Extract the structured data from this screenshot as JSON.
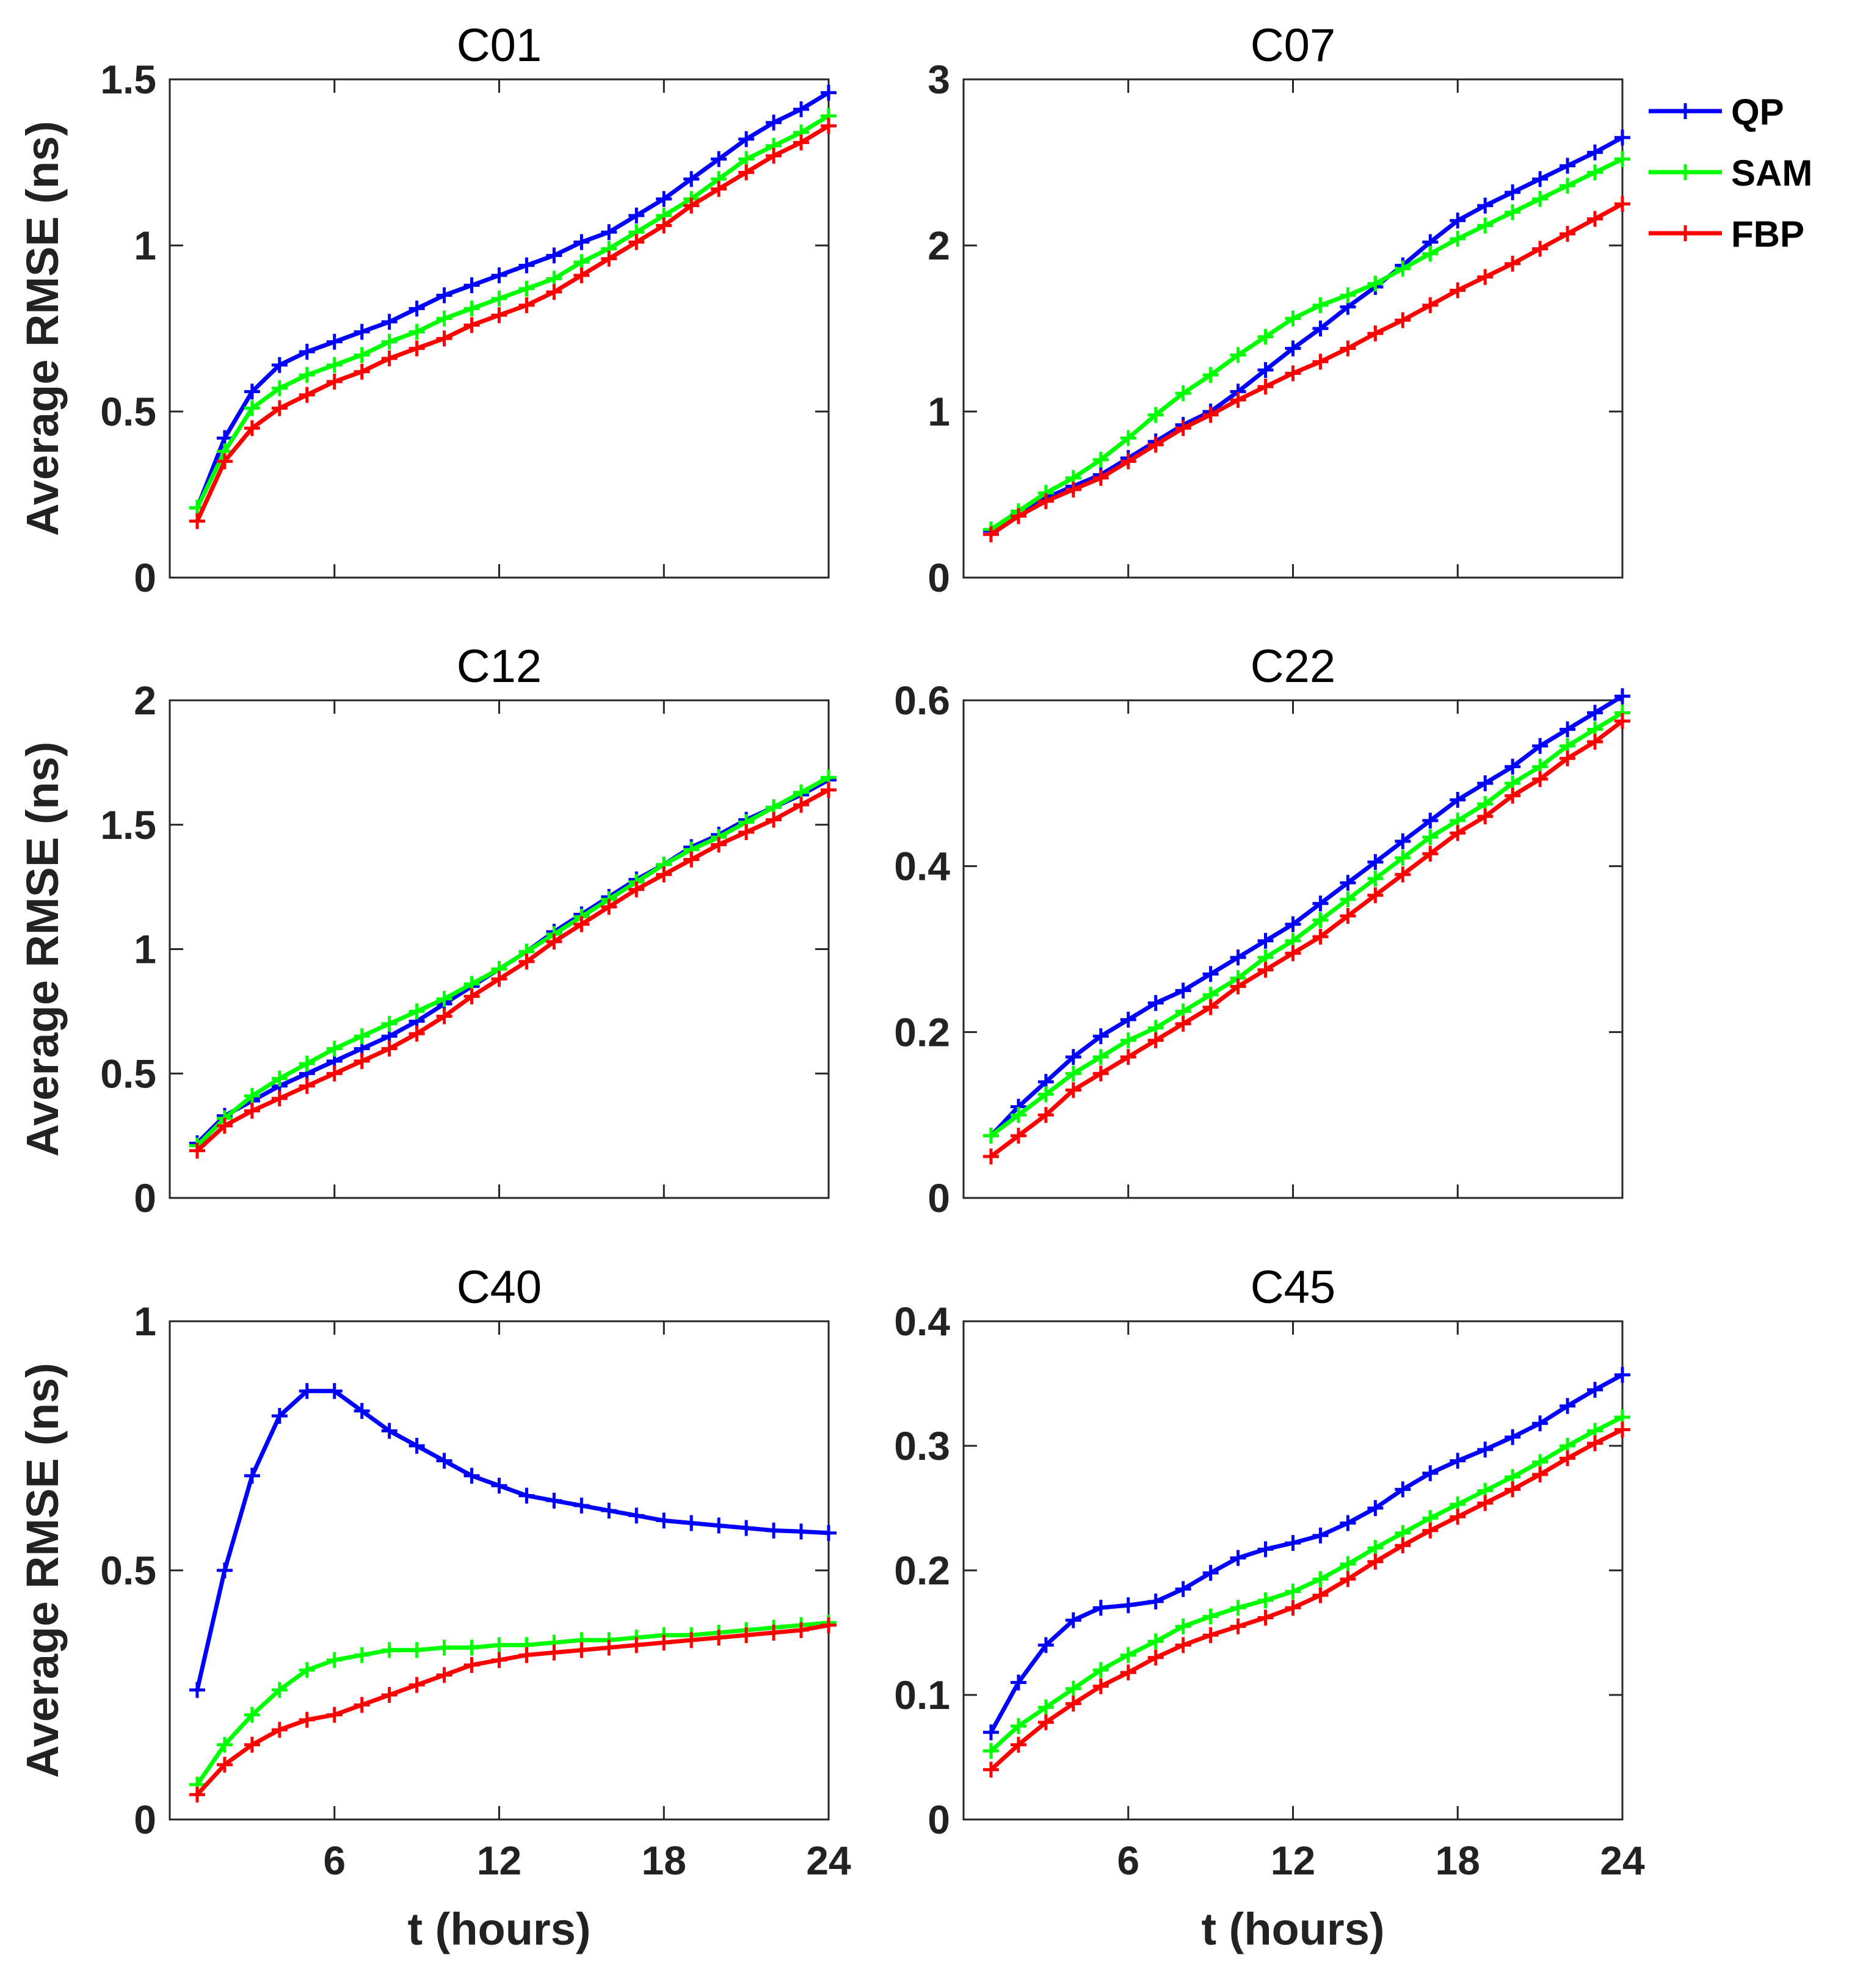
{
  "colors": {
    "QP": "#0000ff",
    "SAM": "#00ff00",
    "FBP": "#ff0000"
  },
  "legend": {
    "placement": "top-right",
    "entries": [
      "QP",
      "SAM",
      "FBP"
    ]
  },
  "chart_data": [
    {
      "type": "line",
      "title": "C01",
      "xlabel": "",
      "ylabel": "Average RMSE (ns)",
      "xlim": [
        0,
        24
      ],
      "ylim": [
        0,
        1.5
      ],
      "xticks": [
        6,
        12,
        18,
        24
      ],
      "yticks": [
        0,
        0.5,
        1,
        1.5
      ],
      "ytick_labels": [
        "0",
        "0.5",
        "1",
        "1.5"
      ],
      "xtick_labels": [
        "",
        "",
        "",
        ""
      ],
      "x": [
        1,
        2,
        3,
        4,
        5,
        6,
        7,
        8,
        9,
        10,
        11,
        12,
        13,
        14,
        15,
        16,
        17,
        18,
        19,
        20,
        21,
        22,
        23,
        24
      ],
      "series": [
        {
          "name": "QP",
          "values": [
            0.21,
            0.42,
            0.56,
            0.64,
            0.68,
            0.71,
            0.74,
            0.77,
            0.81,
            0.85,
            0.88,
            0.91,
            0.94,
            0.97,
            1.01,
            1.04,
            1.09,
            1.14,
            1.2,
            1.26,
            1.32,
            1.37,
            1.41,
            1.46
          ]
        },
        {
          "name": "SAM",
          "values": [
            0.21,
            0.38,
            0.51,
            0.57,
            0.61,
            0.64,
            0.67,
            0.71,
            0.74,
            0.78,
            0.81,
            0.84,
            0.87,
            0.9,
            0.95,
            0.99,
            1.04,
            1.09,
            1.14,
            1.2,
            1.26,
            1.3,
            1.34,
            1.39
          ]
        },
        {
          "name": "FBP",
          "values": [
            0.17,
            0.35,
            0.45,
            0.51,
            0.55,
            0.59,
            0.62,
            0.66,
            0.69,
            0.72,
            0.76,
            0.79,
            0.82,
            0.86,
            0.91,
            0.96,
            1.01,
            1.06,
            1.12,
            1.17,
            1.22,
            1.27,
            1.31,
            1.36
          ]
        }
      ]
    },
    {
      "type": "line",
      "title": "C07",
      "xlabel": "",
      "ylabel": "",
      "xlim": [
        0,
        24
      ],
      "ylim": [
        0,
        3
      ],
      "xticks": [
        6,
        12,
        18,
        24
      ],
      "yticks": [
        0,
        1,
        2,
        3
      ],
      "ytick_labels": [
        "0",
        "1",
        "2",
        "3"
      ],
      "xtick_labels": [
        "",
        "",
        "",
        ""
      ],
      "x": [
        1,
        2,
        3,
        4,
        5,
        6,
        7,
        8,
        9,
        10,
        11,
        12,
        13,
        14,
        15,
        16,
        17,
        18,
        19,
        20,
        21,
        22,
        23,
        24
      ],
      "series": [
        {
          "name": "QP",
          "values": [
            0.28,
            0.38,
            0.48,
            0.55,
            0.62,
            0.72,
            0.82,
            0.92,
            1.0,
            1.12,
            1.25,
            1.38,
            1.5,
            1.63,
            1.75,
            1.88,
            2.02,
            2.15,
            2.24,
            2.32,
            2.4,
            2.48,
            2.56,
            2.65
          ]
        },
        {
          "name": "SAM",
          "values": [
            0.29,
            0.4,
            0.51,
            0.6,
            0.71,
            0.84,
            0.98,
            1.11,
            1.22,
            1.34,
            1.45,
            1.56,
            1.64,
            1.7,
            1.77,
            1.86,
            1.95,
            2.04,
            2.12,
            2.2,
            2.28,
            2.36,
            2.44,
            2.52
          ]
        },
        {
          "name": "FBP",
          "values": [
            0.26,
            0.37,
            0.46,
            0.53,
            0.6,
            0.7,
            0.8,
            0.9,
            0.98,
            1.07,
            1.15,
            1.23,
            1.3,
            1.38,
            1.47,
            1.55,
            1.64,
            1.73,
            1.81,
            1.89,
            1.98,
            2.07,
            2.16,
            2.25
          ]
        }
      ]
    },
    {
      "type": "line",
      "title": "C12",
      "xlabel": "",
      "ylabel": "Average RMSE (ns)",
      "xlim": [
        0,
        24
      ],
      "ylim": [
        0,
        2
      ],
      "xticks": [
        6,
        12,
        18,
        24
      ],
      "yticks": [
        0,
        0.5,
        1,
        1.5,
        2
      ],
      "ytick_labels": [
        "0",
        "0.5",
        "1",
        "1.5",
        "2"
      ],
      "xtick_labels": [
        "",
        "",
        "",
        ""
      ],
      "x": [
        1,
        2,
        3,
        4,
        5,
        6,
        7,
        8,
        9,
        10,
        11,
        12,
        13,
        14,
        15,
        16,
        17,
        18,
        19,
        20,
        21,
        22,
        23,
        24
      ],
      "series": [
        {
          "name": "QP",
          "values": [
            0.22,
            0.33,
            0.39,
            0.45,
            0.5,
            0.55,
            0.6,
            0.65,
            0.71,
            0.78,
            0.85,
            0.92,
            0.99,
            1.07,
            1.14,
            1.21,
            1.28,
            1.34,
            1.41,
            1.46,
            1.52,
            1.57,
            1.62,
            1.68
          ]
        },
        {
          "name": "SAM",
          "values": [
            0.21,
            0.32,
            0.41,
            0.48,
            0.54,
            0.6,
            0.65,
            0.7,
            0.75,
            0.8,
            0.86,
            0.92,
            0.99,
            1.06,
            1.13,
            1.2,
            1.27,
            1.34,
            1.4,
            1.45,
            1.51,
            1.57,
            1.63,
            1.69
          ]
        },
        {
          "name": "FBP",
          "values": [
            0.19,
            0.29,
            0.35,
            0.4,
            0.45,
            0.5,
            0.55,
            0.6,
            0.66,
            0.73,
            0.81,
            0.88,
            0.95,
            1.03,
            1.1,
            1.17,
            1.24,
            1.3,
            1.36,
            1.42,
            1.47,
            1.52,
            1.58,
            1.64
          ]
        }
      ]
    },
    {
      "type": "line",
      "title": "C22",
      "xlabel": "",
      "ylabel": "",
      "xlim": [
        0,
        24
      ],
      "ylim": [
        0,
        0.6
      ],
      "xticks": [
        6,
        12,
        18,
        24
      ],
      "yticks": [
        0,
        0.2,
        0.4,
        0.6
      ],
      "ytick_labels": [
        "0",
        "0.2",
        "0.4",
        "0.6"
      ],
      "xtick_labels": [
        "",
        "",
        "",
        ""
      ],
      "x": [
        1,
        2,
        3,
        4,
        5,
        6,
        7,
        8,
        9,
        10,
        11,
        12,
        13,
        14,
        15,
        16,
        17,
        18,
        19,
        20,
        21,
        22,
        23,
        24
      ],
      "series": [
        {
          "name": "QP",
          "values": [
            0.075,
            0.11,
            0.14,
            0.17,
            0.195,
            0.215,
            0.235,
            0.25,
            0.27,
            0.29,
            0.31,
            0.33,
            0.355,
            0.38,
            0.405,
            0.43,
            0.455,
            0.48,
            0.5,
            0.52,
            0.545,
            0.565,
            0.585,
            0.605
          ]
        },
        {
          "name": "SAM",
          "values": [
            0.075,
            0.1,
            0.125,
            0.15,
            0.17,
            0.19,
            0.205,
            0.225,
            0.245,
            0.265,
            0.29,
            0.31,
            0.335,
            0.36,
            0.385,
            0.41,
            0.435,
            0.455,
            0.475,
            0.5,
            0.52,
            0.545,
            0.565,
            0.585
          ]
        },
        {
          "name": "FBP",
          "values": [
            0.05,
            0.075,
            0.1,
            0.13,
            0.15,
            0.17,
            0.19,
            0.21,
            0.23,
            0.255,
            0.275,
            0.295,
            0.315,
            0.34,
            0.365,
            0.39,
            0.415,
            0.44,
            0.46,
            0.485,
            0.505,
            0.53,
            0.55,
            0.575
          ]
        }
      ]
    },
    {
      "type": "line",
      "title": "C40",
      "xlabel": "t (hours)",
      "ylabel": "Average RMSE (ns)",
      "xlim": [
        0,
        24
      ],
      "ylim": [
        0,
        1
      ],
      "xticks": [
        6,
        12,
        18,
        24
      ],
      "yticks": [
        0,
        0.5,
        1
      ],
      "ytick_labels": [
        "0",
        "0.5",
        "1"
      ],
      "xtick_labels": [
        "6",
        "12",
        "18",
        "24"
      ],
      "x": [
        1,
        2,
        3,
        4,
        5,
        6,
        7,
        8,
        9,
        10,
        11,
        12,
        13,
        14,
        15,
        16,
        17,
        18,
        19,
        20,
        21,
        22,
        23,
        24
      ],
      "series": [
        {
          "name": "QP",
          "values": [
            0.26,
            0.5,
            0.69,
            0.81,
            0.86,
            0.86,
            0.82,
            0.78,
            0.75,
            0.72,
            0.69,
            0.67,
            0.65,
            0.64,
            0.63,
            0.62,
            0.61,
            0.6,
            0.595,
            0.59,
            0.585,
            0.58,
            0.578,
            0.575
          ]
        },
        {
          "name": "SAM",
          "values": [
            0.07,
            0.15,
            0.21,
            0.26,
            0.3,
            0.32,
            0.33,
            0.34,
            0.34,
            0.345,
            0.345,
            0.35,
            0.35,
            0.355,
            0.36,
            0.36,
            0.365,
            0.37,
            0.37,
            0.375,
            0.38,
            0.385,
            0.39,
            0.395
          ]
        },
        {
          "name": "FBP",
          "values": [
            0.05,
            0.11,
            0.15,
            0.18,
            0.2,
            0.21,
            0.23,
            0.25,
            0.27,
            0.29,
            0.31,
            0.32,
            0.33,
            0.335,
            0.34,
            0.345,
            0.35,
            0.355,
            0.36,
            0.365,
            0.37,
            0.375,
            0.38,
            0.39
          ]
        }
      ]
    },
    {
      "type": "line",
      "title": "C45",
      "xlabel": "t (hours)",
      "ylabel": "",
      "xlim": [
        0,
        24
      ],
      "ylim": [
        0,
        0.4
      ],
      "xticks": [
        6,
        12,
        18,
        24
      ],
      "yticks": [
        0,
        0.1,
        0.2,
        0.3,
        0.4
      ],
      "ytick_labels": [
        "0",
        "0.1",
        "0.2",
        "0.3",
        "0.4"
      ],
      "xtick_labels": [
        "6",
        "12",
        "18",
        "24"
      ],
      "x": [
        1,
        2,
        3,
        4,
        5,
        6,
        7,
        8,
        9,
        10,
        11,
        12,
        13,
        14,
        15,
        16,
        17,
        18,
        19,
        20,
        21,
        22,
        23,
        24
      ],
      "series": [
        {
          "name": "QP",
          "values": [
            0.07,
            0.11,
            0.14,
            0.16,
            0.17,
            0.172,
            0.175,
            0.185,
            0.198,
            0.21,
            0.217,
            0.222,
            0.228,
            0.238,
            0.25,
            0.265,
            0.278,
            0.288,
            0.297,
            0.307,
            0.318,
            0.332,
            0.345,
            0.357
          ]
        },
        {
          "name": "SAM",
          "values": [
            0.055,
            0.075,
            0.09,
            0.105,
            0.12,
            0.132,
            0.143,
            0.155,
            0.163,
            0.17,
            0.176,
            0.183,
            0.193,
            0.205,
            0.218,
            0.23,
            0.242,
            0.253,
            0.264,
            0.275,
            0.287,
            0.3,
            0.312,
            0.323
          ]
        },
        {
          "name": "FBP",
          "values": [
            0.04,
            0.06,
            0.078,
            0.093,
            0.107,
            0.118,
            0.13,
            0.14,
            0.148,
            0.155,
            0.162,
            0.17,
            0.18,
            0.193,
            0.207,
            0.22,
            0.232,
            0.243,
            0.254,
            0.265,
            0.277,
            0.29,
            0.302,
            0.313
          ]
        }
      ]
    }
  ]
}
